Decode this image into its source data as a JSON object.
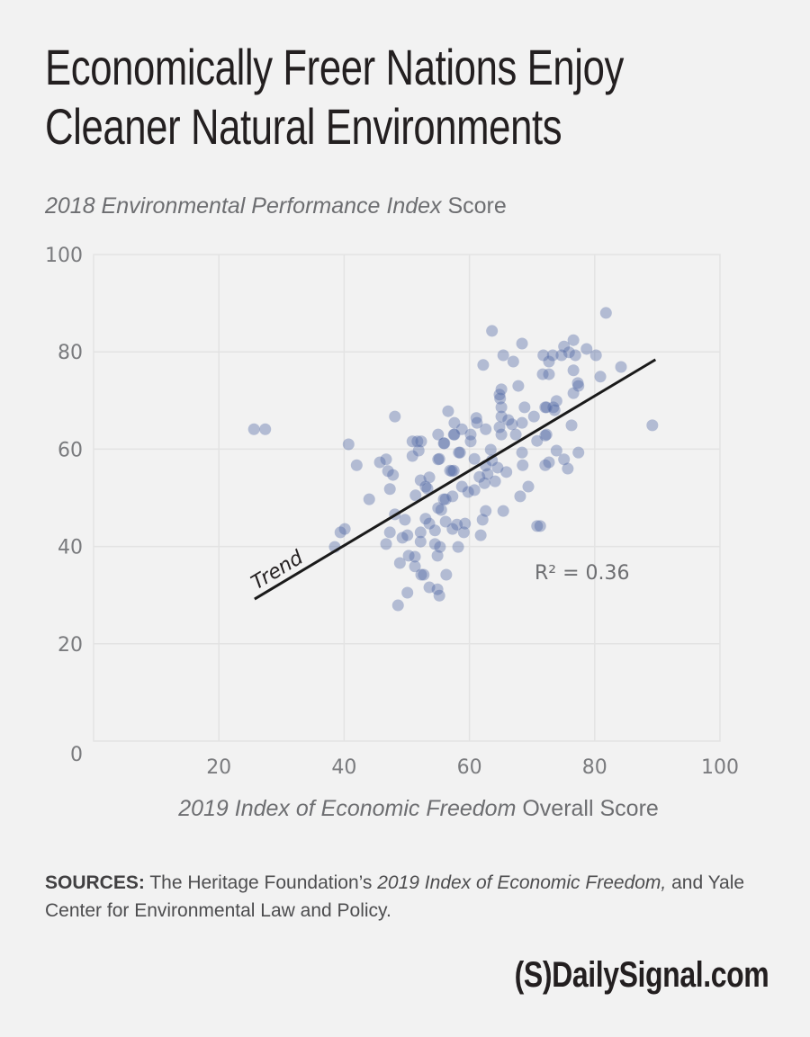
{
  "title_lines": [
    "Economically Freer Nations Enjoy",
    "Cleaner Natural Environments"
  ],
  "y_axis_label": {
    "italic": "2018 Environmental Performance Index",
    "plain": " Score"
  },
  "x_axis_label": {
    "italic": "2019 Index of Economic Freedom",
    "plain": " Overall Score"
  },
  "sources": {
    "label": "SOURCES:",
    "text1": " The Heritage Foundation’s ",
    "italic": "2019 Index of Economic Freedom,",
    "text2": " and Yale Center for Environmental Law and Policy."
  },
  "logo": "(S)DailySignal.com",
  "colors": {
    "background": "#f2f2f2",
    "point": "#4a62a0",
    "grid": "#e3e3e3",
    "trend": "#1a1a1a",
    "text": "#231f20"
  },
  "chart_data": {
    "type": "scatter",
    "title": "Economically Freer Nations Enjoy Cleaner Natural Environments",
    "xlabel": "2019 Index of Economic Freedom Overall Score",
    "ylabel": "2018 Environmental Performance Index Score",
    "xlim": [
      0,
      100
    ],
    "ylim": [
      0,
      100
    ],
    "x_ticks": [
      "20",
      "40",
      "60",
      "80",
      "100"
    ],
    "y_ticks": [
      "0",
      "20",
      "40",
      "60",
      "80",
      "100"
    ],
    "grid": true,
    "trend": {
      "label": "Trend",
      "x": [
        25.7,
        89.7
      ],
      "y": [
        29.2,
        78.4
      ]
    },
    "annotation": "R² = 0.36",
    "points": [
      [
        25.6,
        64.1
      ],
      [
        27.4,
        64.1
      ],
      [
        40.7,
        61.0
      ],
      [
        42.0,
        56.7
      ],
      [
        45.7,
        57.3
      ],
      [
        46.7,
        57.9
      ],
      [
        47.0,
        55.5
      ],
      [
        47.8,
        54.7
      ],
      [
        47.3,
        51.8
      ],
      [
        44.0,
        49.7
      ],
      [
        48.1,
        66.7
      ],
      [
        50.9,
        61.6
      ],
      [
        51.7,
        61.6
      ],
      [
        52.3,
        61.6
      ],
      [
        51.9,
        59.7
      ],
      [
        50.9,
        58.6
      ],
      [
        52.2,
        53.6
      ],
      [
        53.6,
        54.2
      ],
      [
        53.0,
        52.3
      ],
      [
        51.4,
        50.5
      ],
      [
        55.0,
        63.0
      ],
      [
        55.0,
        57.9
      ],
      [
        55.9,
        61.2
      ],
      [
        57.5,
        63.0
      ],
      [
        58.3,
        59.3
      ],
      [
        56.9,
        55.6
      ],
      [
        57.5,
        55.6
      ],
      [
        53.3,
        51.9
      ],
      [
        55.5,
        47.5
      ],
      [
        56.2,
        49.7
      ],
      [
        40.1,
        43.6
      ],
      [
        39.4,
        42.9
      ],
      [
        38.5,
        39.9
      ],
      [
        48.1,
        46.6
      ],
      [
        49.7,
        45.5
      ],
      [
        47.3,
        42.9
      ],
      [
        50.1,
        42.3
      ],
      [
        49.3,
        41.8
      ],
      [
        52.2,
        42.9
      ],
      [
        52.2,
        41.0
      ],
      [
        46.7,
        40.5
      ],
      [
        50.3,
        38.1
      ],
      [
        51.3,
        37.9
      ],
      [
        48.9,
        36.6
      ],
      [
        51.3,
        35.9
      ],
      [
        52.3,
        34.2
      ],
      [
        52.7,
        34.2
      ],
      [
        53.6,
        31.6
      ],
      [
        50.1,
        30.5
      ],
      [
        48.6,
        27.9
      ],
      [
        53.0,
        45.7
      ],
      [
        53.6,
        44.7
      ],
      [
        54.5,
        43.3
      ],
      [
        54.5,
        40.5
      ],
      [
        54.9,
        38.1
      ],
      [
        54.9,
        31.2
      ],
      [
        55.2,
        29.9
      ],
      [
        56.6,
        67.8
      ],
      [
        57.6,
        65.4
      ],
      [
        58.8,
        64.1
      ],
      [
        57.6,
        63.0
      ],
      [
        56.0,
        61.2
      ],
      [
        55.2,
        58.0
      ],
      [
        58.5,
        59.3
      ],
      [
        57.2,
        55.5
      ],
      [
        60.2,
        63.0
      ],
      [
        60.2,
        61.6
      ],
      [
        61.1,
        66.4
      ],
      [
        61.2,
        65.4
      ],
      [
        62.6,
        64.1
      ],
      [
        64.9,
        70.4
      ],
      [
        65.1,
        68.6
      ],
      [
        65.1,
        66.7
      ],
      [
        64.8,
        64.5
      ],
      [
        65.1,
        63.0
      ],
      [
        66.2,
        66.0
      ],
      [
        66.8,
        65.1
      ],
      [
        67.4,
        63.0
      ],
      [
        68.4,
        65.4
      ],
      [
        68.8,
        68.6
      ],
      [
        70.3,
        66.7
      ],
      [
        72.1,
        68.6
      ],
      [
        70.8,
        61.7
      ],
      [
        72.3,
        63.0
      ],
      [
        68.4,
        59.3
      ],
      [
        68.5,
        56.7
      ],
      [
        72.1,
        56.7
      ],
      [
        60.8,
        58.0
      ],
      [
        63.4,
        59.9
      ],
      [
        63.6,
        57.7
      ],
      [
        62.6,
        56.6
      ],
      [
        64.5,
        56.2
      ],
      [
        65.9,
        55.3
      ],
      [
        61.6,
        54.3
      ],
      [
        62.9,
        54.9
      ],
      [
        62.4,
        53.0
      ],
      [
        64.1,
        53.4
      ],
      [
        69.4,
        52.3
      ],
      [
        68.1,
        50.3
      ],
      [
        58.8,
        52.3
      ],
      [
        59.8,
        51.2
      ],
      [
        57.3,
        50.3
      ],
      [
        55.9,
        49.7
      ],
      [
        55.0,
        47.9
      ],
      [
        60.8,
        51.6
      ],
      [
        62.6,
        47.3
      ],
      [
        65.4,
        47.3
      ],
      [
        62.1,
        45.5
      ],
      [
        61.8,
        42.3
      ],
      [
        70.8,
        44.2
      ],
      [
        59.3,
        44.7
      ],
      [
        58.0,
        44.5
      ],
      [
        57.3,
        43.6
      ],
      [
        59.1,
        42.9
      ],
      [
        56.2,
        45.1
      ],
      [
        58.2,
        39.9
      ],
      [
        55.3,
        39.9
      ],
      [
        56.3,
        34.2
      ],
      [
        63.6,
        84.3
      ],
      [
        68.4,
        81.7
      ],
      [
        65.4,
        79.3
      ],
      [
        67.0,
        78.0
      ],
      [
        62.2,
        77.3
      ],
      [
        71.8,
        79.3
      ],
      [
        72.7,
        78.0
      ],
      [
        71.7,
        75.4
      ],
      [
        72.7,
        75.4
      ],
      [
        67.8,
        73.0
      ],
      [
        65.1,
        72.3
      ],
      [
        64.8,
        71.2
      ],
      [
        72.3,
        68.6
      ],
      [
        73.4,
        68.6
      ],
      [
        73.9,
        69.9
      ],
      [
        81.8,
        88.0
      ],
      [
        76.6,
        82.4
      ],
      [
        75.1,
        81.1
      ],
      [
        75.9,
        79.9
      ],
      [
        78.7,
        80.6
      ],
      [
        80.2,
        79.3
      ],
      [
        76.9,
        79.3
      ],
      [
        74.7,
        79.3
      ],
      [
        73.3,
        79.3
      ],
      [
        76.6,
        76.2
      ],
      [
        84.2,
        76.9
      ],
      [
        80.9,
        74.9
      ],
      [
        77.3,
        73.6
      ],
      [
        77.4,
        73.0
      ],
      [
        76.6,
        71.5
      ],
      [
        73.6,
        68.0
      ],
      [
        76.3,
        64.9
      ],
      [
        89.2,
        64.9
      ],
      [
        72.1,
        62.8
      ],
      [
        73.9,
        59.7
      ],
      [
        77.4,
        59.3
      ],
      [
        75.1,
        57.9
      ],
      [
        72.7,
        57.3
      ],
      [
        75.7,
        56.0
      ],
      [
        71.3,
        44.2
      ]
    ]
  }
}
